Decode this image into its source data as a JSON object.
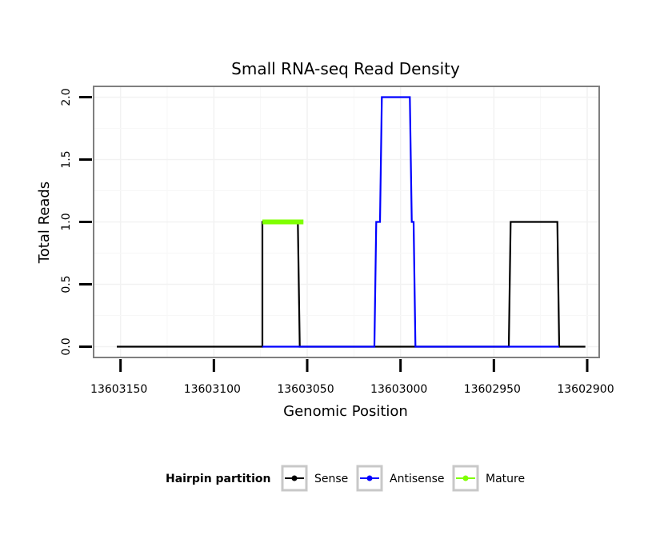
{
  "chart_data": {
    "type": "line",
    "title": "Small RNA-seq Read Density",
    "xlabel": "Genomic Position",
    "ylabel": "Total Reads",
    "xlim": [
      13603164,
      13602894
    ],
    "xlim_note": "x axis is reversed (positions decrease to the right)",
    "ylim": [
      -0.08,
      2.08
    ],
    "x_ticks": [
      13603150,
      13603100,
      13603050,
      13603000,
      13602950,
      13602900
    ],
    "x_tick_labels": [
      "13603150",
      "13603100",
      "13603050",
      "13603000",
      "13602950",
      "13602900"
    ],
    "y_ticks": [
      0.0,
      0.5,
      1.0,
      1.5,
      2.0
    ],
    "y_tick_labels": [
      "0.0",
      "0.5",
      "1.0",
      "1.5",
      "2.0"
    ],
    "grid": true,
    "legend": {
      "title": "Hairpin partition",
      "position": "bottom",
      "entries": [
        "Sense",
        "Antisense",
        "Mature"
      ]
    },
    "series": [
      {
        "name": "Sense",
        "color": "#000000",
        "points": [
          [
            13603152,
            0
          ],
          [
            13603074,
            0
          ],
          [
            13603074,
            1
          ],
          [
            13603055,
            1
          ],
          [
            13603054,
            0
          ],
          [
            13602992,
            0
          ],
          [
            13602942,
            0
          ],
          [
            13602941,
            1
          ],
          [
            13602916,
            1
          ],
          [
            13602915,
            0
          ],
          [
            13602901,
            0
          ]
        ]
      },
      {
        "name": "Antisense",
        "color": "#0000ff",
        "points": [
          [
            13603074,
            0
          ],
          [
            13603054,
            0
          ],
          [
            13603014,
            0
          ],
          [
            13603013,
            1
          ],
          [
            13603011,
            1
          ],
          [
            13603010,
            2
          ],
          [
            13602995,
            2
          ],
          [
            13602994,
            1
          ],
          [
            13602993,
            1
          ],
          [
            13602992,
            0
          ],
          [
            13602942,
            0
          ],
          [
            13602915,
            0
          ]
        ]
      },
      {
        "name": "Mature",
        "color": "#7fff00",
        "points": [
          [
            13603074,
            1
          ],
          [
            13603052,
            1
          ]
        ]
      }
    ]
  }
}
